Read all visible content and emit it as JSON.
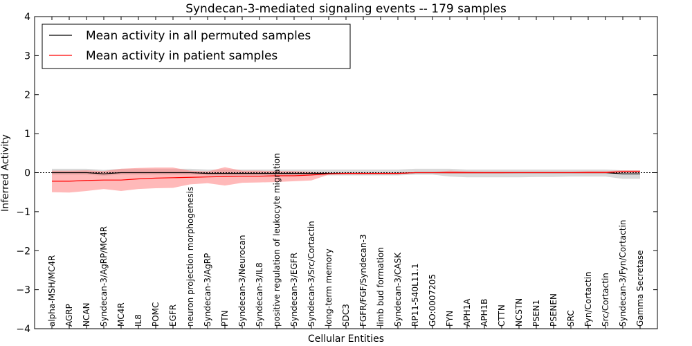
{
  "chart_data": {
    "type": "line",
    "title": "Syndecan-3-mediated signaling events -- 179 samples",
    "xlabel": "Cellular Entities",
    "ylabel": "Inferred Activity",
    "ylim": [
      -4,
      4
    ],
    "yticks": [
      -4,
      -3,
      -2,
      -1,
      0,
      1,
      2,
      3,
      4
    ],
    "grid": false,
    "legend_position": "top-left",
    "categories": [
      "alpha-MSH/MC4R",
      "AGRP",
      "NCAN",
      "Syndecan-3/AgRP/MC4R",
      "MC4R",
      "IL8",
      "POMC",
      "EGFR",
      "neuron projection morphogenesis",
      "Syndecan-3/AgRP",
      "PTN",
      "Syndecan-3/Neurocan",
      "Syndecan-3/IL8",
      "positive regulation of leukocyte migration",
      "Syndecan-3/EGFR",
      "Syndecan-3/Src/Cortactin",
      "long-term memory",
      "SDC3",
      "FGFR/FGF/Syndecan-3",
      "limb bud formation",
      "Syndecan-3/CASK",
      "RP11-540L11.1",
      "GO:0007205",
      "FYN",
      "APH1A",
      "APH1B",
      "CTTN",
      "NCSTN",
      "PSEN1",
      "PSENEN",
      "SRC",
      "Fyn/Cortactin",
      "Src/Cortactin",
      "Syndecan-3/Fyn/Cortactin",
      "Gamma Secretase"
    ],
    "series": [
      {
        "name": "Mean activity in all permuted samples",
        "color": "#000000",
        "band_color": "#aaaaaa",
        "values": [
          0.0,
          0.0,
          0.0,
          -0.03,
          0.0,
          0.0,
          0.0,
          0.0,
          0.0,
          -0.02,
          -0.02,
          -0.02,
          -0.02,
          -0.02,
          -0.02,
          -0.02,
          -0.02,
          -0.02,
          -0.02,
          -0.02,
          -0.02,
          0.0,
          0.0,
          0.0,
          0.0,
          0.0,
          0.0,
          0.0,
          0.0,
          0.0,
          0.0,
          0.0,
          0.0,
          -0.03,
          -0.03
        ],
        "lower": [
          -0.05,
          -0.05,
          -0.05,
          -0.08,
          -0.05,
          -0.05,
          -0.05,
          -0.05,
          -0.05,
          -0.07,
          -0.07,
          -0.07,
          -0.07,
          -0.07,
          -0.07,
          -0.07,
          -0.07,
          -0.07,
          -0.07,
          -0.07,
          -0.07,
          -0.05,
          -0.05,
          -0.1,
          -0.12,
          -0.12,
          -0.12,
          -0.12,
          -0.11,
          -0.11,
          -0.1,
          -0.1,
          -0.1,
          -0.16,
          -0.16
        ],
        "upper": [
          0.1,
          0.1,
          0.1,
          0.07,
          0.1,
          0.1,
          0.1,
          0.1,
          0.1,
          0.08,
          0.08,
          0.08,
          0.08,
          0.08,
          0.08,
          0.08,
          0.08,
          0.08,
          0.08,
          0.08,
          0.08,
          0.1,
          0.1,
          0.1,
          0.08,
          0.08,
          0.08,
          0.08,
          0.08,
          0.08,
          0.08,
          0.08,
          0.08,
          0.06,
          0.06
        ]
      },
      {
        "name": "Mean activity in patient samples",
        "color": "#ff0000",
        "band_color": "#ff7f7f",
        "values": [
          -0.22,
          -0.22,
          -0.2,
          -0.19,
          -0.19,
          -0.16,
          -0.14,
          -0.13,
          -0.12,
          -0.11,
          -0.1,
          -0.09,
          -0.09,
          -0.08,
          -0.08,
          -0.06,
          -0.03,
          -0.02,
          -0.02,
          -0.02,
          -0.02,
          0.0,
          0.0,
          0.0,
          0.0,
          0.0,
          0.0,
          0.0,
          0.0,
          0.0,
          0.0,
          0.0,
          0.0,
          0.03,
          0.03
        ],
        "lower": [
          -0.5,
          -0.51,
          -0.47,
          -0.42,
          -0.47,
          -0.42,
          -0.4,
          -0.39,
          -0.3,
          -0.27,
          -0.33,
          -0.26,
          -0.25,
          -0.24,
          -0.22,
          -0.2,
          -0.05,
          -0.04,
          -0.04,
          -0.04,
          -0.04,
          -0.01,
          -0.01,
          -0.02,
          -0.02,
          -0.02,
          -0.02,
          -0.01,
          -0.01,
          -0.01,
          -0.01,
          -0.01,
          -0.01,
          0.0,
          0.0
        ],
        "upper": [
          0.05,
          0.05,
          0.06,
          0.04,
          0.1,
          0.12,
          0.13,
          0.13,
          0.05,
          0.03,
          0.14,
          0.05,
          0.05,
          0.04,
          0.04,
          0.02,
          -0.01,
          0.0,
          0.0,
          0.0,
          0.0,
          0.01,
          0.01,
          0.05,
          0.03,
          0.02,
          0.02,
          0.02,
          0.02,
          0.02,
          0.02,
          0.04,
          0.04,
          0.06,
          0.06
        ]
      }
    ]
  }
}
